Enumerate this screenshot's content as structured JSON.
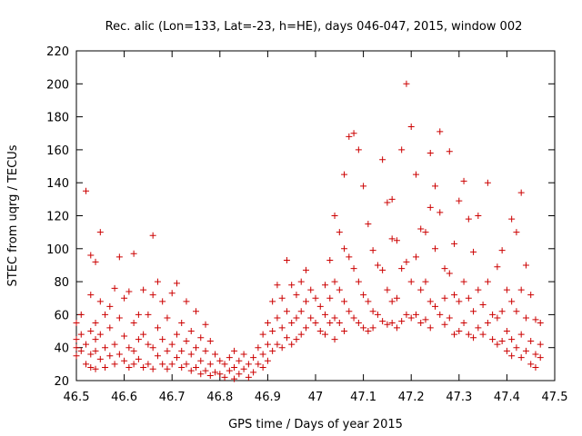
{
  "chart_data": {
    "type": "scatter",
    "title": "Rec. alic (Lon=133, Lat=-23, h=HE), days 046-047, 2015, window 002",
    "xlabel": "GPS time / Days of year 2015",
    "ylabel": "STEC from uqrg / TECUs",
    "xlim": [
      46.5,
      47.5
    ],
    "ylim": [
      20,
      220
    ],
    "xticks": [
      "46.5",
      "46.6",
      "46.7",
      "46.8",
      "46.9",
      "47",
      "47.1",
      "47.2",
      "47.3",
      "47.4",
      "47.5"
    ],
    "yticks": [
      "20",
      "40",
      "60",
      "80",
      "100",
      "120",
      "140",
      "160",
      "180",
      "200",
      "220"
    ],
    "grid": false,
    "marker": "+",
    "color": "#cc0000",
    "points": [
      [
        46.5,
        40
      ],
      [
        46.5,
        45
      ],
      [
        46.5,
        55
      ],
      [
        46.5,
        35
      ],
      [
        46.51,
        38
      ],
      [
        46.51,
        48
      ],
      [
        46.51,
        60
      ],
      [
        46.52,
        135
      ],
      [
        46.52,
        42
      ],
      [
        46.52,
        30
      ],
      [
        46.53,
        96
      ],
      [
        46.53,
        72
      ],
      [
        46.53,
        50
      ],
      [
        46.53,
        36
      ],
      [
        46.53,
        28
      ],
      [
        46.54,
        92
      ],
      [
        46.54,
        55
      ],
      [
        46.54,
        45
      ],
      [
        46.54,
        38
      ],
      [
        46.54,
        27
      ],
      [
        46.55,
        110
      ],
      [
        46.55,
        68
      ],
      [
        46.55,
        48
      ],
      [
        46.55,
        33
      ],
      [
        46.56,
        60
      ],
      [
        46.56,
        40
      ],
      [
        46.56,
        28
      ],
      [
        46.57,
        65
      ],
      [
        46.57,
        52
      ],
      [
        46.57,
        35
      ],
      [
        46.58,
        76
      ],
      [
        46.58,
        42
      ],
      [
        46.58,
        30
      ],
      [
        46.59,
        95
      ],
      [
        46.59,
        58
      ],
      [
        46.59,
        36
      ],
      [
        46.6,
        70
      ],
      [
        46.6,
        47
      ],
      [
        46.6,
        32
      ],
      [
        46.61,
        74
      ],
      [
        46.61,
        40
      ],
      [
        46.61,
        28
      ],
      [
        46.62,
        97
      ],
      [
        46.62,
        55
      ],
      [
        46.62,
        38
      ],
      [
        46.62,
        30
      ],
      [
        46.63,
        60
      ],
      [
        46.63,
        45
      ],
      [
        46.63,
        33
      ],
      [
        46.64,
        75
      ],
      [
        46.64,
        48
      ],
      [
        46.64,
        28
      ],
      [
        46.65,
        60
      ],
      [
        46.65,
        42
      ],
      [
        46.65,
        30
      ],
      [
        46.66,
        108
      ],
      [
        46.66,
        72
      ],
      [
        46.66,
        40
      ],
      [
        46.66,
        27
      ],
      [
        46.67,
        80
      ],
      [
        46.67,
        52
      ],
      [
        46.67,
        35
      ],
      [
        46.68,
        68
      ],
      [
        46.68,
        45
      ],
      [
        46.68,
        30
      ],
      [
        46.69,
        58
      ],
      [
        46.69,
        38
      ],
      [
        46.69,
        27
      ],
      [
        46.7,
        73
      ],
      [
        46.7,
        42
      ],
      [
        46.7,
        30
      ],
      [
        46.71,
        79
      ],
      [
        46.71,
        48
      ],
      [
        46.71,
        34
      ],
      [
        46.72,
        55
      ],
      [
        46.72,
        38
      ],
      [
        46.72,
        28
      ],
      [
        46.73,
        68
      ],
      [
        46.73,
        44
      ],
      [
        46.73,
        30
      ],
      [
        46.74,
        50
      ],
      [
        46.74,
        36
      ],
      [
        46.74,
        26
      ],
      [
        46.75,
        62
      ],
      [
        46.75,
        40
      ],
      [
        46.75,
        28
      ],
      [
        46.76,
        46
      ],
      [
        46.76,
        32
      ],
      [
        46.76,
        24
      ],
      [
        46.77,
        54
      ],
      [
        46.77,
        38
      ],
      [
        46.77,
        26
      ],
      [
        46.78,
        44
      ],
      [
        46.78,
        30
      ],
      [
        46.78,
        23
      ],
      [
        46.79,
        36
      ],
      [
        46.79,
        25
      ],
      [
        46.8,
        32
      ],
      [
        46.8,
        24
      ],
      [
        46.81,
        30
      ],
      [
        46.81,
        22
      ],
      [
        46.82,
        34
      ],
      [
        46.82,
        26
      ],
      [
        46.83,
        38
      ],
      [
        46.83,
        28
      ],
      [
        46.83,
        21
      ],
      [
        46.84,
        32
      ],
      [
        46.84,
        24
      ],
      [
        46.85,
        36
      ],
      [
        46.85,
        27
      ],
      [
        46.86,
        30
      ],
      [
        46.86,
        22
      ],
      [
        46.87,
        34
      ],
      [
        46.87,
        25
      ],
      [
        46.88,
        40
      ],
      [
        46.88,
        30
      ],
      [
        46.89,
        48
      ],
      [
        46.89,
        36
      ],
      [
        46.89,
        28
      ],
      [
        46.9,
        55
      ],
      [
        46.9,
        42
      ],
      [
        46.9,
        32
      ],
      [
        46.91,
        68
      ],
      [
        46.91,
        50
      ],
      [
        46.91,
        38
      ],
      [
        46.92,
        78
      ],
      [
        46.92,
        58
      ],
      [
        46.92,
        42
      ],
      [
        46.93,
        70
      ],
      [
        46.93,
        52
      ],
      [
        46.93,
        40
      ],
      [
        46.94,
        93
      ],
      [
        46.94,
        62
      ],
      [
        46.94,
        46
      ],
      [
        46.95,
        78
      ],
      [
        46.95,
        55
      ],
      [
        46.95,
        42
      ],
      [
        46.96,
        72
      ],
      [
        46.96,
        58
      ],
      [
        46.96,
        45
      ],
      [
        46.97,
        80
      ],
      [
        46.97,
        62
      ],
      [
        46.97,
        48
      ],
      [
        46.98,
        87
      ],
      [
        46.98,
        68
      ],
      [
        46.98,
        52
      ],
      [
        46.99,
        75
      ],
      [
        46.99,
        58
      ],
      [
        47.0,
        70
      ],
      [
        47.0,
        55
      ],
      [
        47.01,
        65
      ],
      [
        47.01,
        50
      ],
      [
        47.02,
        78
      ],
      [
        47.02,
        60
      ],
      [
        47.02,
        48
      ],
      [
        47.03,
        93
      ],
      [
        47.03,
        70
      ],
      [
        47.03,
        55
      ],
      [
        47.04,
        120
      ],
      [
        47.04,
        80
      ],
      [
        47.04,
        58
      ],
      [
        47.04,
        45
      ],
      [
        47.05,
        110
      ],
      [
        47.05,
        75
      ],
      [
        47.05,
        55
      ],
      [
        47.06,
        145
      ],
      [
        47.06,
        100
      ],
      [
        47.06,
        68
      ],
      [
        47.06,
        50
      ],
      [
        47.07,
        168
      ],
      [
        47.07,
        95
      ],
      [
        47.07,
        62
      ],
      [
        47.08,
        170
      ],
      [
        47.08,
        88
      ],
      [
        47.08,
        58
      ],
      [
        47.09,
        160
      ],
      [
        47.09,
        80
      ],
      [
        47.09,
        55
      ],
      [
        47.1,
        138
      ],
      [
        47.1,
        72
      ],
      [
        47.1,
        52
      ],
      [
        47.11,
        115
      ],
      [
        47.11,
        68
      ],
      [
        47.11,
        50
      ],
      [
        47.12,
        99
      ],
      [
        47.12,
        62
      ],
      [
        47.12,
        52
      ],
      [
        47.13,
        90
      ],
      [
        47.13,
        60
      ],
      [
        47.14,
        154
      ],
      [
        47.14,
        87
      ],
      [
        47.14,
        56
      ],
      [
        47.15,
        128
      ],
      [
        47.15,
        75
      ],
      [
        47.15,
        54
      ],
      [
        47.16,
        130
      ],
      [
        47.16,
        106
      ],
      [
        47.16,
        68
      ],
      [
        47.16,
        55
      ],
      [
        47.17,
        105
      ],
      [
        47.17,
        70
      ],
      [
        47.17,
        52
      ],
      [
        47.18,
        160
      ],
      [
        47.18,
        88
      ],
      [
        47.18,
        56
      ],
      [
        47.19,
        200
      ],
      [
        47.19,
        92
      ],
      [
        47.19,
        60
      ],
      [
        47.2,
        174
      ],
      [
        47.2,
        80
      ],
      [
        47.2,
        58
      ],
      [
        47.21,
        145
      ],
      [
        47.21,
        95
      ],
      [
        47.21,
        60
      ],
      [
        47.22,
        112
      ],
      [
        47.22,
        75
      ],
      [
        47.22,
        55
      ],
      [
        47.23,
        110
      ],
      [
        47.23,
        80
      ],
      [
        47.23,
        57
      ],
      [
        47.24,
        158
      ],
      [
        47.24,
        125
      ],
      [
        47.24,
        68
      ],
      [
        47.24,
        52
      ],
      [
        47.25,
        138
      ],
      [
        47.25,
        100
      ],
      [
        47.25,
        65
      ],
      [
        47.26,
        171
      ],
      [
        47.26,
        122
      ],
      [
        47.26,
        60
      ],
      [
        47.27,
        88
      ],
      [
        47.27,
        70
      ],
      [
        47.27,
        54
      ],
      [
        47.28,
        159
      ],
      [
        47.28,
        85
      ],
      [
        47.28,
        58
      ],
      [
        47.29,
        103
      ],
      [
        47.29,
        72
      ],
      [
        47.29,
        48
      ],
      [
        47.3,
        129
      ],
      [
        47.3,
        68
      ],
      [
        47.3,
        50
      ],
      [
        47.31,
        141
      ],
      [
        47.31,
        80
      ],
      [
        47.31,
        55
      ],
      [
        47.32,
        118
      ],
      [
        47.32,
        70
      ],
      [
        47.32,
        48
      ],
      [
        47.33,
        98
      ],
      [
        47.33,
        62
      ],
      [
        47.33,
        46
      ],
      [
        47.34,
        120
      ],
      [
        47.34,
        75
      ],
      [
        47.34,
        52
      ],
      [
        47.35,
        66
      ],
      [
        47.35,
        48
      ],
      [
        47.36,
        140
      ],
      [
        47.36,
        80
      ],
      [
        47.36,
        55
      ],
      [
        47.37,
        60
      ],
      [
        47.37,
        45
      ],
      [
        47.38,
        89
      ],
      [
        47.38,
        58
      ],
      [
        47.38,
        42
      ],
      [
        47.39,
        99
      ],
      [
        47.39,
        62
      ],
      [
        47.39,
        44
      ],
      [
        47.4,
        75
      ],
      [
        47.4,
        50
      ],
      [
        47.4,
        38
      ],
      [
        47.41,
        118
      ],
      [
        47.41,
        68
      ],
      [
        47.41,
        45
      ],
      [
        47.41,
        35
      ],
      [
        47.42,
        110
      ],
      [
        47.42,
        62
      ],
      [
        47.42,
        40
      ],
      [
        47.43,
        134
      ],
      [
        47.43,
        75
      ],
      [
        47.43,
        48
      ],
      [
        47.43,
        34
      ],
      [
        47.44,
        90
      ],
      [
        47.44,
        58
      ],
      [
        47.44,
        38
      ],
      [
        47.45,
        72
      ],
      [
        47.45,
        44
      ],
      [
        47.45,
        30
      ],
      [
        47.46,
        57
      ],
      [
        47.46,
        36
      ],
      [
        47.46,
        28
      ],
      [
        47.47,
        55
      ],
      [
        47.47,
        42
      ],
      [
        47.47,
        34
      ]
    ]
  }
}
